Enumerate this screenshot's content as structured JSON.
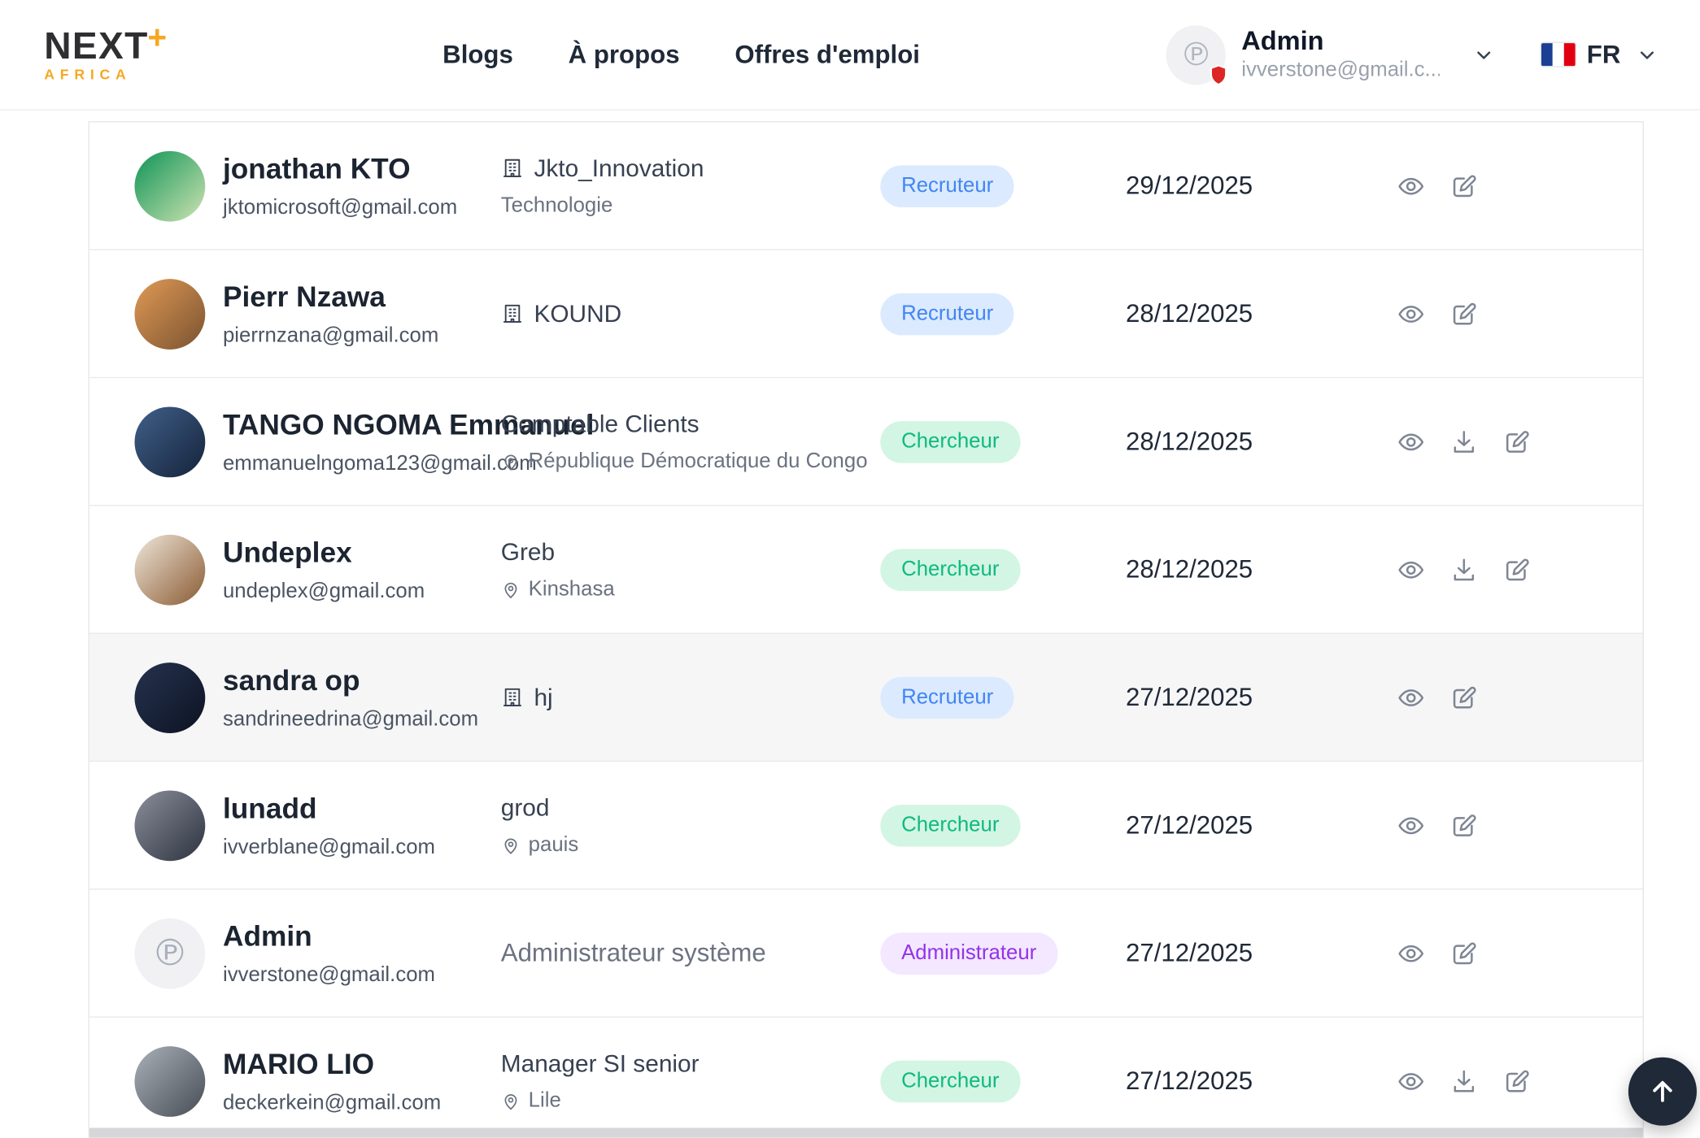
{
  "header": {
    "logo": {
      "name": "NEXT",
      "plus": "+",
      "region": "AFRICA"
    },
    "nav": [
      "Blogs",
      "À propos",
      "Offres d'emploi"
    ],
    "user": {
      "name": "Admin",
      "email": "ivverstone@gmail.c..."
    },
    "language": "FR"
  },
  "badges": {
    "Recruteur": {
      "bg": "#dbeafe",
      "fg": "#4285f4"
    },
    "Chercheur": {
      "bg": "#d3f5e4",
      "fg": "#10b981"
    },
    "Administrateur": {
      "bg": "#f3e8ff",
      "fg": "#9333ea"
    }
  },
  "rows": [
    {
      "name": "jonathan KTO",
      "email": "jktomicrosoft@gmail.com",
      "org": "Jkto_Innovation",
      "org_icon": "building",
      "sub": "Technologie",
      "sub_icon": "",
      "badge": "Recruteur",
      "date": "29/12/2025",
      "actions": [
        "view",
        "edit"
      ],
      "avatar": {
        "colors": [
          "#0d9455",
          "#cfe3b2"
        ]
      }
    },
    {
      "name": "Pierr Nzawa",
      "email": "pierrnzana@gmail.com",
      "org": "KOUND",
      "org_icon": "building",
      "sub": "",
      "sub_icon": "",
      "badge": "Recruteur",
      "date": "28/12/2025",
      "actions": [
        "view",
        "edit"
      ],
      "avatar": {
        "colors": [
          "#e09a55",
          "#7a5230"
        ]
      }
    },
    {
      "name": "TANGO NGOMA Emmanuel",
      "email": "emmanuelngoma123@gmail.com",
      "org": "Comptable Clients",
      "org_icon": "",
      "sub": "République Démocratique du Congo",
      "sub_icon": "pin",
      "badge": "Chercheur",
      "date": "28/12/2025",
      "actions": [
        "view",
        "download",
        "edit"
      ],
      "avatar": {
        "colors": [
          "#41608a",
          "#14233a"
        ]
      }
    },
    {
      "name": "Undeplex",
      "email": "undeplex@gmail.com",
      "org": "Greb",
      "org_icon": "",
      "sub": "Kinshasa",
      "sub_icon": "pin",
      "badge": "Chercheur",
      "date": "28/12/2025",
      "actions": [
        "view",
        "download",
        "edit"
      ],
      "avatar": {
        "colors": [
          "#efe7da",
          "#8a5a32"
        ]
      }
    },
    {
      "name": "sandra op",
      "email": "sandrineedrina@gmail.com",
      "org": "hj",
      "org_icon": "building",
      "sub": "",
      "sub_icon": "",
      "badge": "Recruteur",
      "date": "27/12/2025",
      "actions": [
        "view",
        "edit"
      ],
      "highlight": true,
      "avatar": {
        "colors": [
          "#26324f",
          "#0c1322"
        ]
      }
    },
    {
      "name": "lunadd",
      "email": "ivverblane@gmail.com",
      "org": "grod",
      "org_icon": "",
      "sub": "pauis",
      "sub_icon": "pin",
      "badge": "Chercheur",
      "date": "27/12/2025",
      "actions": [
        "view",
        "edit"
      ],
      "avatar": {
        "colors": [
          "#8b8f9a",
          "#2d3240"
        ]
      }
    },
    {
      "name": "Admin",
      "email": "ivverstone@gmail.com",
      "org": "Administrateur système",
      "org_icon": "",
      "org_muted": true,
      "sub": "",
      "sub_icon": "",
      "badge": "Administrateur",
      "date": "27/12/2025",
      "actions": [
        "view",
        "edit"
      ],
      "avatar": {
        "logo": true
      }
    },
    {
      "name": "MARIO LIO",
      "email": "deckerkein@gmail.com",
      "org": "Manager SI senior",
      "org_icon": "",
      "sub": "Lile",
      "sub_icon": "pin",
      "badge": "Chercheur",
      "date": "27/12/2025",
      "actions": [
        "view",
        "download",
        "edit"
      ],
      "avatar": {
        "colors": [
          "#aab1b9",
          "#474c55"
        ]
      }
    }
  ]
}
